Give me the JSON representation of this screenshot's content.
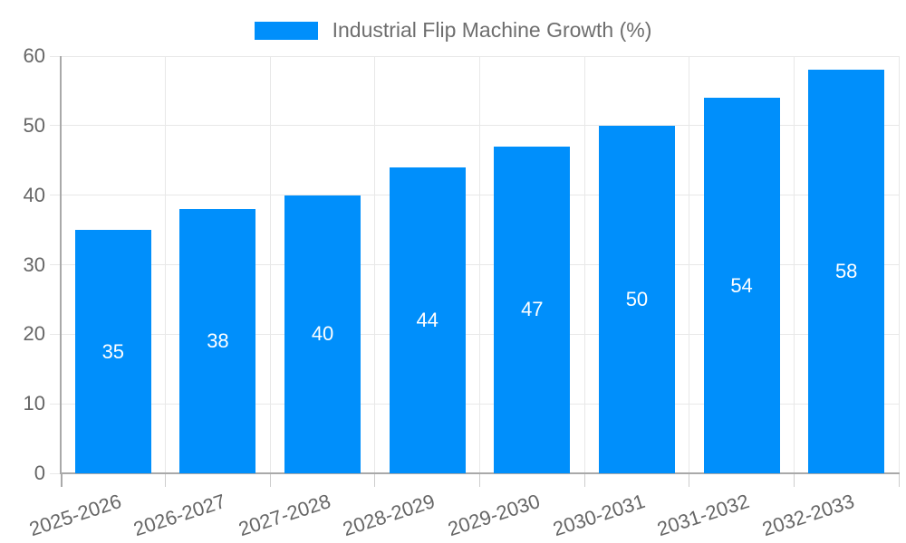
{
  "legend": {
    "label": "Industrial Flip Machine Growth (%)",
    "swatch_color": "#008FFB"
  },
  "chart_data": {
    "type": "bar",
    "title": "Industrial Flip Machine Growth (%)",
    "categories": [
      "2025-2026",
      "2026-2027",
      "2027-2028",
      "2028-2029",
      "2029-2030",
      "2030-2031",
      "2031-2032",
      "2032-2033"
    ],
    "values": [
      35,
      38,
      40,
      44,
      47,
      50,
      54,
      58
    ],
    "xlabel": "",
    "ylabel": "",
    "ylim": [
      0,
      60
    ],
    "yticks": [
      0,
      10,
      20,
      30,
      40,
      50,
      60
    ],
    "grid": true,
    "legend_position": "top",
    "x_tick_rotation_deg": -18,
    "bar_color": "#008FFB",
    "bar_label_color": "#FFFFFF",
    "grid_color": "#E8E8E8",
    "axis_color": "#A9A9A9",
    "xtick_mark_color": "#CDCDCD",
    "tick_label_color": "#666666",
    "legend_text_color": "#6E6E6E",
    "background_color": "#FFFFFF"
  }
}
